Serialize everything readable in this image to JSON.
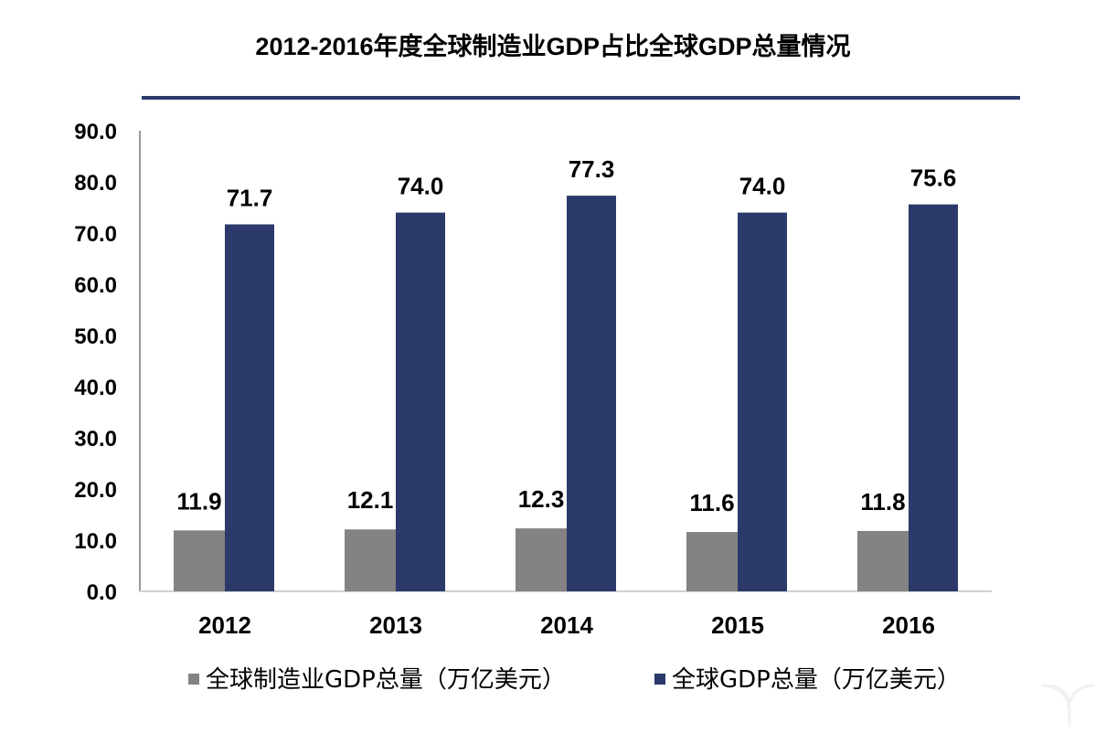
{
  "chart_data": {
    "type": "bar",
    "title": "2012-2016年度全球制造业GDP占比全球GDP总量情况",
    "categories": [
      "2012",
      "2013",
      "2014",
      "2015",
      "2016"
    ],
    "series": [
      {
        "name": "全球制造业GDP总量（万亿美元）",
        "values": [
          11.9,
          12.1,
          12.3,
          11.6,
          11.8
        ],
        "color": "#858283"
      },
      {
        "name": "全球GDP总量（万亿美元）",
        "values": [
          71.7,
          74.0,
          77.3,
          74.0,
          75.6
        ],
        "color": "#2b3a6b"
      }
    ],
    "ylim": [
      0,
      90
    ],
    "yticks": [
      "0.0",
      "10.0",
      "20.0",
      "30.0",
      "40.0",
      "50.0",
      "60.0",
      "70.0",
      "80.0",
      "90.0"
    ],
    "xlabel": "",
    "ylabel": "",
    "grid": false,
    "legend_position": "bottom",
    "title_rule_color": "#2b3a6b"
  },
  "watermark": "亿欧"
}
